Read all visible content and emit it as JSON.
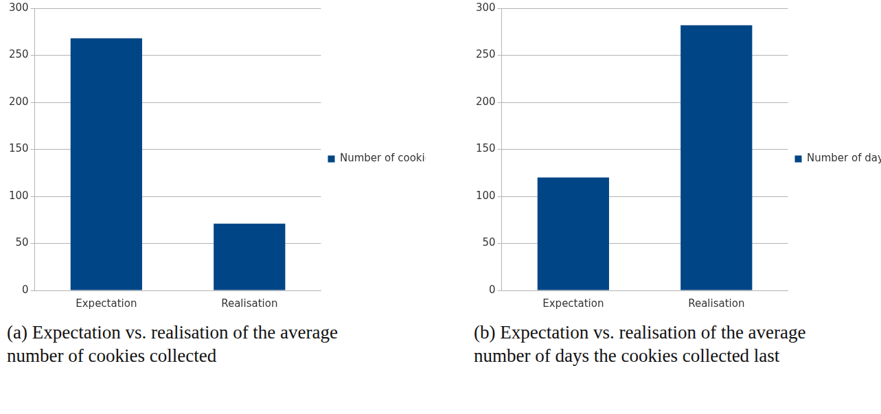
{
  "chart_data": [
    {
      "type": "bar",
      "title": "(a) Expectation vs. realisation of the average number of cookies collected",
      "categories": [
        "Expectation",
        "Realisation"
      ],
      "series": [
        {
          "name": "Number of cookies",
          "color": "#004586",
          "values": [
            268,
            71
          ]
        }
      ],
      "ylim": [
        0,
        300
      ],
      "yticks": [
        0,
        50,
        100,
        150,
        200,
        250,
        300
      ],
      "grid": true,
      "legend": "right"
    },
    {
      "type": "bar",
      "title": "(b) Expectation vs. realisation of the average number of days the cookies collected last",
      "categories": [
        "Expectation",
        "Realisation"
      ],
      "series": [
        {
          "name": "Number of days",
          "color": "#004586",
          "values": [
            120,
            282
          ]
        }
      ],
      "ylim": [
        0,
        300
      ],
      "yticks": [
        0,
        50,
        100,
        150,
        200,
        250,
        300
      ],
      "grid": true,
      "legend": "right"
    }
  ]
}
